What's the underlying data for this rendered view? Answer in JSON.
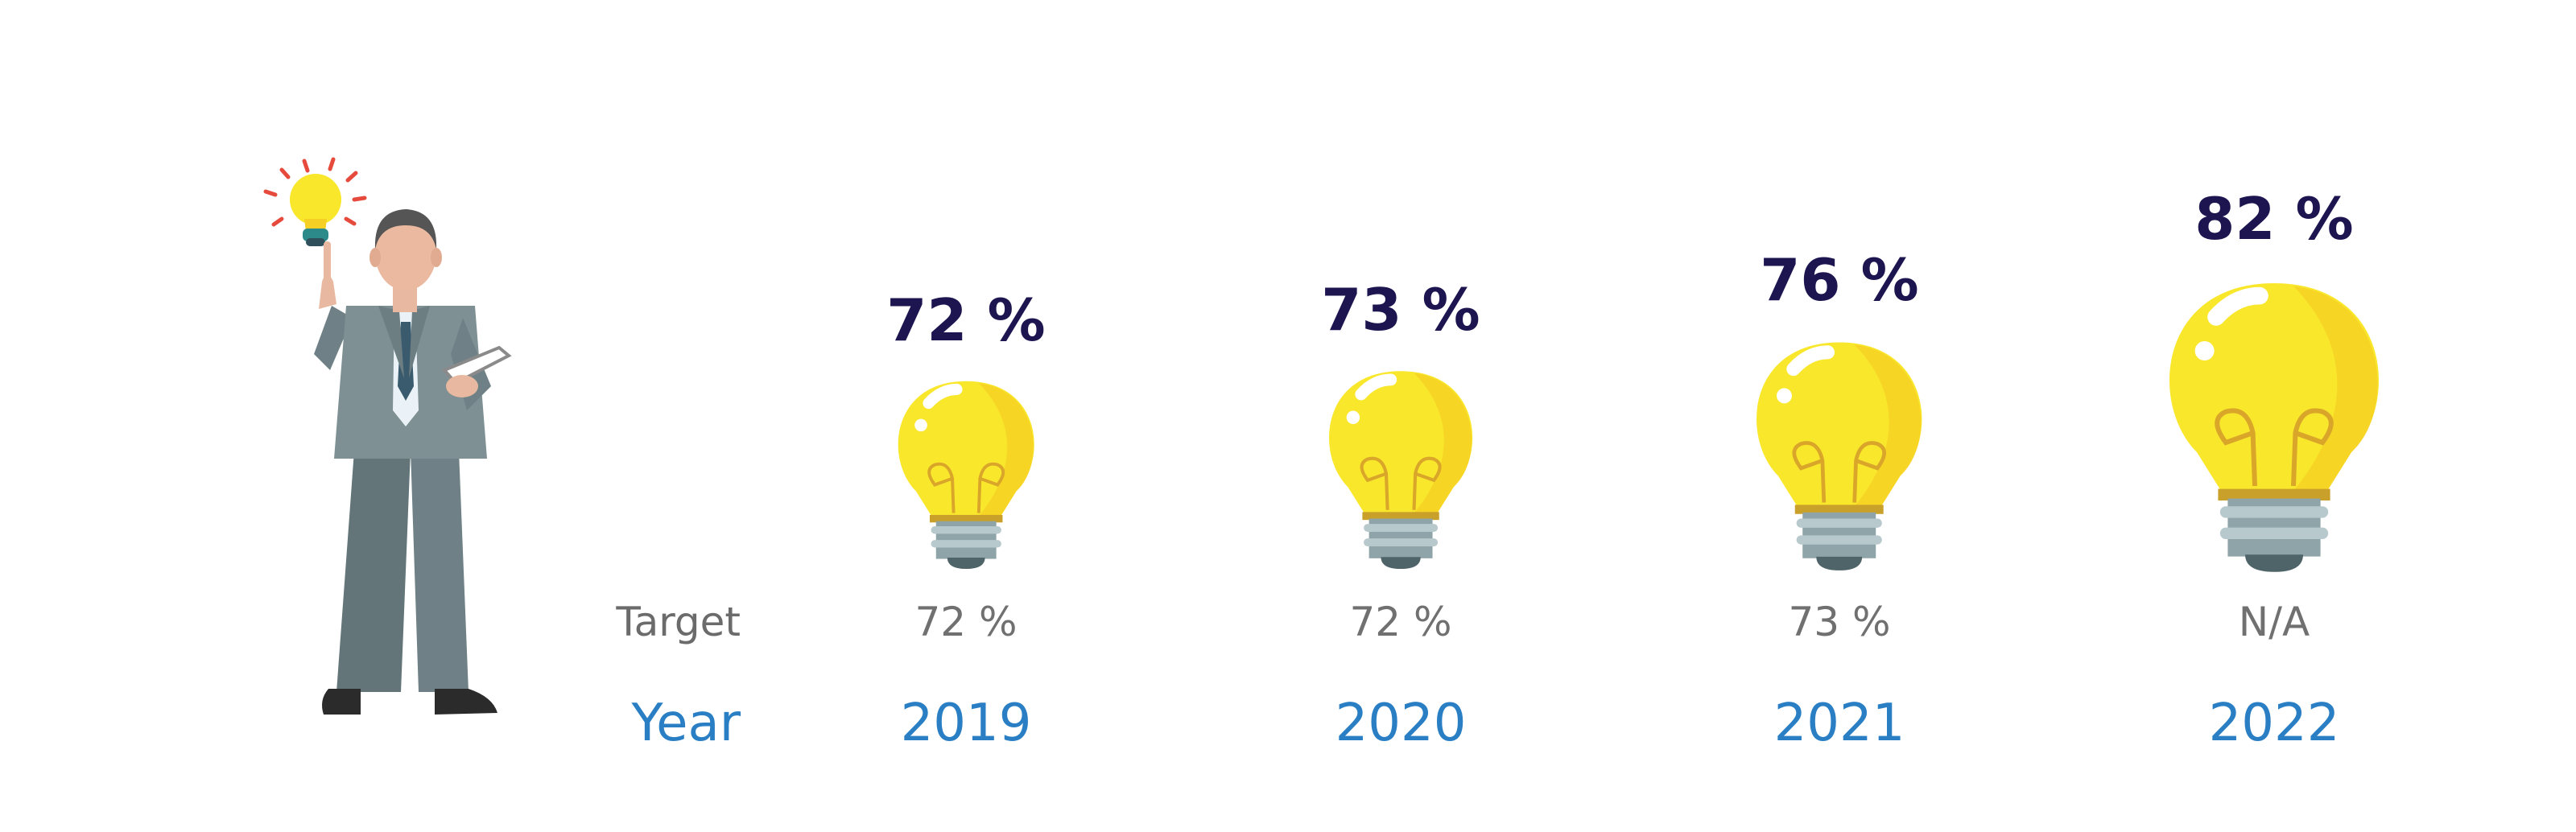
{
  "chart_data": {
    "type": "bar",
    "categories": [
      "2019",
      "2020",
      "2021",
      "2022"
    ],
    "series": [
      {
        "values": [
          72,
          73,
          76,
          82
        ],
        "labels": [
          "72 %",
          "73 %",
          "76 %",
          "82 %"
        ]
      }
    ],
    "targets": [
      "72 %",
      "72 %",
      "73 %",
      "N/A"
    ],
    "row_labels": {
      "target": "Target",
      "year": "Year"
    },
    "colors": {
      "value_text": "#1d1550",
      "year_text": "#2a7fc4",
      "target_text": "#707070",
      "bulb": "#f9e72c",
      "bulb_shade": "#f5cf23"
    }
  }
}
